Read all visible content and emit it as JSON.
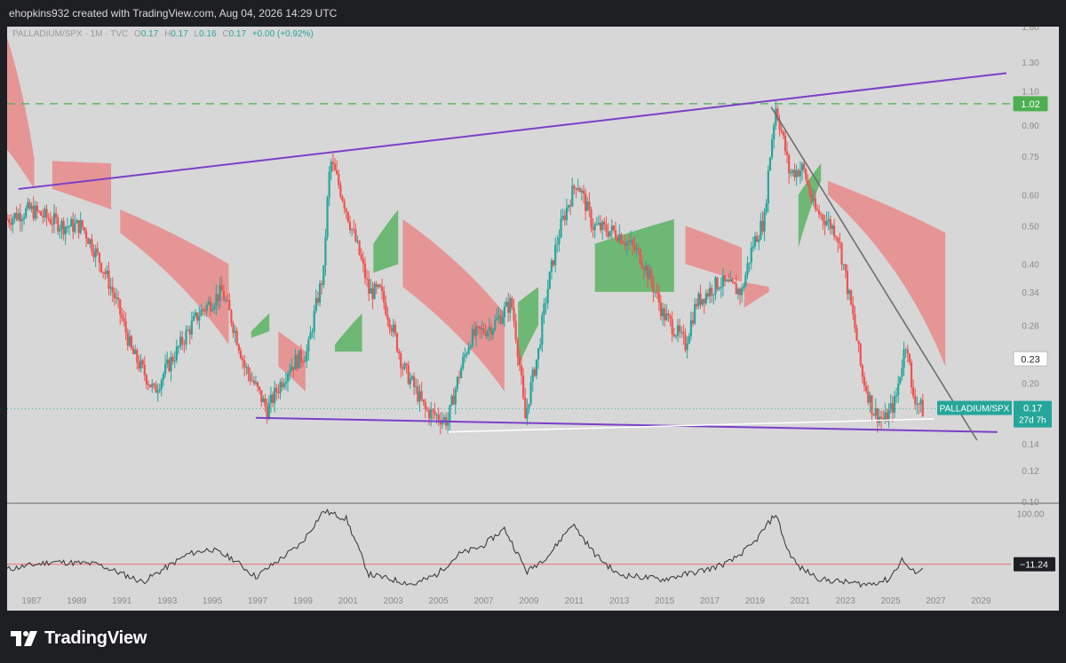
{
  "header": {
    "attribution": "ehopkins932 created with TradingView.com, Aug 04, 2026 14:29 UTC"
  },
  "legend": {
    "symbol": "PALLADIUM/SPX",
    "interval": "1M",
    "source": "TVC",
    "o_key": "O",
    "o_val": "0.17",
    "h_key": "H",
    "h_val": "0.17",
    "l_key": "L",
    "l_val": "0.16",
    "c_key": "C",
    "c_val": "0.17",
    "change": "+0.00 (+0.92%)"
  },
  "colors": {
    "background": "#d7d7d7",
    "up": "#26a69a",
    "down": "#ef5350",
    "cloud_bear": "#e88e8e",
    "cloud_bull": "#63b56a",
    "trendline": "#7b3fc7",
    "downtrend": "#6e6e6e",
    "hline": "#4caf50",
    "oscillator": "#333333",
    "zero_line": "#ef6b6b"
  },
  "footer": {
    "brand": "TradingView"
  },
  "chart_data": [
    {
      "type": "candlestick",
      "title": "PALLADIUM/SPX · 1M · TVC",
      "y_scale": "log",
      "ylim": [
        0.1,
        1.6
      ],
      "y_ticks": [
        "1.60",
        "1.30",
        "1.10",
        "0.90",
        "0.75",
        "0.60",
        "0.50",
        "0.40",
        "0.34",
        "0.28",
        "0.20",
        "0.14",
        "0.12",
        "0.10"
      ],
      "x_ticks": [
        "1987",
        "1989",
        "1991",
        "1993",
        "1995",
        "1997",
        "1999",
        "2001",
        "2003",
        "2005",
        "2007",
        "2009",
        "2011",
        "2013",
        "2015",
        "2017",
        "2019",
        "2021",
        "2023",
        "2025",
        "2027",
        "2029"
      ],
      "price_series": {
        "x": [
          1986.0,
          1987.0,
          1988.5,
          1989.3,
          1990.5,
          1991.5,
          1992.5,
          1993.5,
          1994.5,
          1995.5,
          1996.5,
          1997.5,
          1998.5,
          1999.3,
          2000.0,
          2000.3,
          2001.2,
          2002.0,
          2002.5,
          2003.5,
          2004.5,
          2005.5,
          2006.5,
          2007.5,
          2008.3,
          2008.9,
          2009.5,
          2010.5,
          2011.2,
          2011.9,
          2013.0,
          2014.0,
          2015.0,
          2016.0,
          2016.5,
          2017.5,
          2018.5,
          2019.0,
          2019.5,
          2020.0,
          2020.6,
          2021.2,
          2021.7,
          2022.2,
          2022.7,
          2023.2,
          2023.8,
          2024.3,
          2024.8,
          2025.3,
          2025.8,
          2026.0,
          2026.5
        ],
        "close": [
          0.52,
          0.55,
          0.5,
          0.5,
          0.36,
          0.24,
          0.19,
          0.24,
          0.3,
          0.34,
          0.22,
          0.17,
          0.22,
          0.24,
          0.38,
          0.73,
          0.5,
          0.34,
          0.34,
          0.22,
          0.17,
          0.16,
          0.26,
          0.28,
          0.32,
          0.16,
          0.24,
          0.5,
          0.65,
          0.5,
          0.48,
          0.42,
          0.3,
          0.25,
          0.32,
          0.36,
          0.34,
          0.45,
          0.52,
          1.0,
          0.68,
          0.7,
          0.55,
          0.52,
          0.48,
          0.34,
          0.21,
          0.17,
          0.16,
          0.18,
          0.26,
          0.19,
          0.17
        ]
      },
      "cloud": [
        {
          "sentiment": "bearish",
          "x": [
            1986.0,
            1987.2
          ],
          "top": [
            1.5,
            0.74
          ],
          "bottom": [
            0.78,
            0.62
          ]
        },
        {
          "sentiment": "bearish",
          "x": [
            1988.0,
            1990.6
          ],
          "top": [
            0.73,
            0.72
          ],
          "bottom": [
            0.62,
            0.55
          ]
        },
        {
          "sentiment": "bearish",
          "x": [
            1991.0,
            1995.8
          ],
          "top": [
            0.55,
            0.4
          ],
          "bottom": [
            0.48,
            0.25
          ]
        },
        {
          "sentiment": "bullish",
          "x": [
            1996.8,
            1997.6
          ],
          "top": [
            0.27,
            0.3
          ],
          "bottom": [
            0.26,
            0.27
          ]
        },
        {
          "sentiment": "bearish",
          "x": [
            1998.0,
            1999.2
          ],
          "top": [
            0.27,
            0.24
          ],
          "bottom": [
            0.22,
            0.19
          ]
        },
        {
          "sentiment": "bullish",
          "x": [
            2000.5,
            2001.7
          ],
          "top": [
            0.25,
            0.3
          ],
          "bottom": [
            0.24,
            0.24
          ]
        },
        {
          "sentiment": "bullish",
          "x": [
            2002.2,
            2003.3
          ],
          "top": [
            0.45,
            0.55
          ],
          "bottom": [
            0.38,
            0.4
          ]
        },
        {
          "sentiment": "bearish",
          "x": [
            2003.5,
            2008.0
          ],
          "top": [
            0.52,
            0.3
          ],
          "bottom": [
            0.35,
            0.19
          ]
        },
        {
          "sentiment": "bullish",
          "x": [
            2008.6,
            2009.5
          ],
          "top": [
            0.32,
            0.35
          ],
          "bottom": [
            0.22,
            0.28
          ]
        },
        {
          "sentiment": "bullish",
          "x": [
            2012.0,
            2015.5
          ],
          "top": [
            0.45,
            0.52
          ],
          "bottom": [
            0.34,
            0.34
          ]
        },
        {
          "sentiment": "bearish",
          "x": [
            2016.0,
            2018.5
          ],
          "top": [
            0.5,
            0.44
          ],
          "bottom": [
            0.4,
            0.36
          ]
        },
        {
          "sentiment": "bearish",
          "x": [
            2018.6,
            2019.7
          ],
          "top": [
            0.36,
            0.35
          ],
          "bottom": [
            0.31,
            0.34
          ]
        },
        {
          "sentiment": "bullish",
          "x": [
            2021.0,
            2022.0
          ],
          "top": [
            0.6,
            0.72
          ],
          "bottom": [
            0.44,
            0.65
          ]
        },
        {
          "sentiment": "bearish",
          "x": [
            2022.3,
            2027.5
          ],
          "top": [
            0.65,
            0.48
          ],
          "bottom": [
            0.6,
            0.22
          ]
        }
      ],
      "levels": [
        {
          "label": "1.02",
          "value": 1.02,
          "style": "dashed"
        },
        {
          "label": "0.23",
          "value": 0.23,
          "style": "label"
        }
      ],
      "last_price": {
        "label": "PALLADIUM/SPX",
        "value": "0.17",
        "countdown": "27d 7h"
      },
      "trendlines": [
        {
          "kind": "channel-top",
          "from": [
            1986.5,
            0.62
          ],
          "to": [
            2030.2,
            1.22
          ]
        },
        {
          "kind": "channel-bottom",
          "from": [
            1997.0,
            0.163
          ],
          "to": [
            2029.8,
            0.15
          ]
        },
        {
          "kind": "support",
          "from": [
            2005.5,
            0.15
          ],
          "to": [
            2027.0,
            0.162
          ]
        },
        {
          "kind": "downtrend",
          "from": [
            2019.8,
            1.0
          ],
          "to": [
            2028.9,
            0.143
          ]
        }
      ]
    },
    {
      "type": "line",
      "title": "",
      "y_ticks": [
        "100.00"
      ],
      "zero_line": 0,
      "last_value": "−11.24",
      "x": [
        1986,
        1988,
        1990,
        1992,
        1994,
        1995,
        1996,
        1997,
        1999,
        2000,
        2001,
        2002,
        2003,
        2004,
        2005,
        2006,
        2007,
        2008,
        2009,
        2010,
        2011,
        2012,
        2013,
        2014,
        2015,
        2016,
        2017,
        2018,
        2019,
        2020,
        2020.5,
        2021,
        2022,
        2023,
        2024,
        2025,
        2025.6,
        2026,
        2026.5
      ],
      "values": [
        -10,
        5,
        0,
        -35,
        20,
        30,
        10,
        -25,
        40,
        105,
        90,
        -20,
        -30,
        -40,
        -20,
        20,
        35,
        70,
        -15,
        20,
        80,
        20,
        -20,
        -25,
        -30,
        -20,
        -10,
        5,
        40,
        100,
        30,
        -5,
        -30,
        -35,
        -40,
        -30,
        10,
        -15,
        -11
      ]
    }
  ]
}
